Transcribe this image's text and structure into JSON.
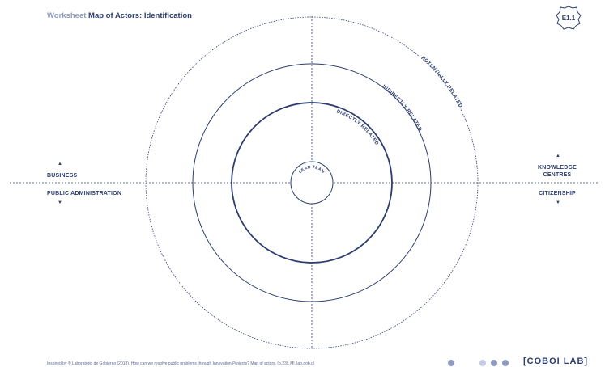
{
  "header": {
    "prefix": "Worksheet",
    "title": "Map of Actors: Identification"
  },
  "badge": {
    "code": "E1.1"
  },
  "rings": {
    "potentially": "POTENTIALLY RELATED",
    "indirectly": "INDIRECTLY RELATED",
    "directly": "DIRECTLY RELATED",
    "center": "LEAD TEAM"
  },
  "quadrants": {
    "top_left": "BUSINESS",
    "bottom_left": "PUBLIC ADMINISTRATION",
    "top_right_line1": "KNOWLEDGE",
    "top_right_line2": "CENTRES",
    "bottom_right": "CITIZENSHIP"
  },
  "arrows": {
    "up": "▲",
    "down": "▼"
  },
  "footer": {
    "citation": "Inspired by ® Laboratorio de Gobierno (2018). How can we resolve public problems through Innovation Projects? Map of actors. (p.23). Ml. lab.gob.cl"
  },
  "brand": {
    "name": "[COBOI LAB]"
  },
  "colors": {
    "primary": "#2c3d6e",
    "muted": "#8e9bbf",
    "dot_light": "#c5cbe0"
  }
}
